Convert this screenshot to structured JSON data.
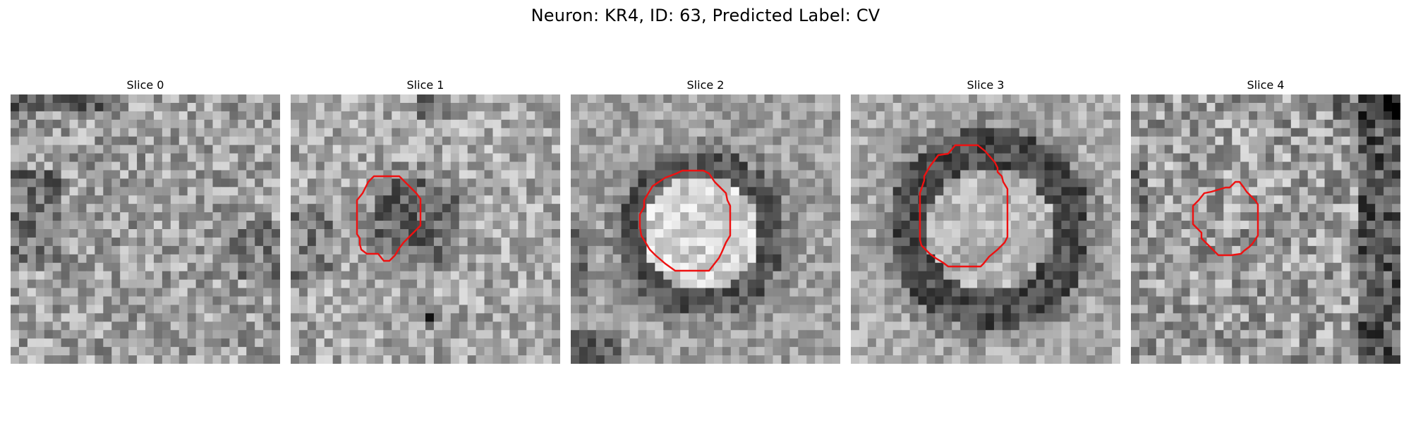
{
  "figure": {
    "title": "Neuron: KR4, ID: 63, Predicted Label: CV",
    "contour_color": "#ee1111"
  },
  "panels": [
    {
      "title": "Slice 0",
      "has_contour": false
    },
    {
      "title": "Slice 1",
      "has_contour": true
    },
    {
      "title": "Slice 2",
      "has_contour": true
    },
    {
      "title": "Slice 3",
      "has_contour": true
    },
    {
      "title": "Slice 4",
      "has_contour": true
    }
  ]
}
